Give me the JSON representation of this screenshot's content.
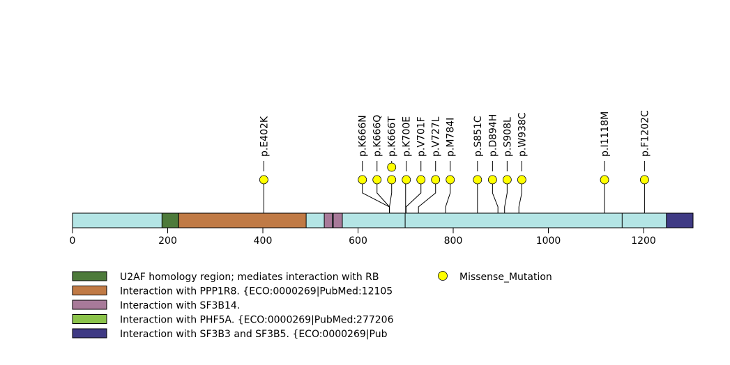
{
  "chart_data": {
    "type": "lollipop",
    "protein_length": 1304,
    "xlim": [
      0,
      1304
    ],
    "ticks": [
      0,
      200,
      400,
      600,
      800,
      1000,
      1200
    ],
    "tick_labels": [
      "0",
      "200",
      "400",
      "600",
      "800",
      "1000",
      "1200"
    ],
    "backbone_color": "#b4e5e5",
    "domains": [
      {
        "start": 188,
        "end": 223,
        "color": "#4d7a3a",
        "name": "U2AF homology region; mediates interaction with RB"
      },
      {
        "start": 223,
        "end": 491,
        "color": "#c07a45",
        "name": "Interaction with PPP1R8. {ECO:0000269|PubMed:12105"
      },
      {
        "start": 529,
        "end": 546,
        "color": "#a87a99",
        "name": "Interaction with SF3B14."
      },
      {
        "start": 548,
        "end": 567,
        "color": "#a87a99",
        "name": "Interaction with SF3B14."
      },
      {
        "start": 1248,
        "end": 1304,
        "color": "#3f3a84",
        "name": "Interaction with SF3B3 and SF3B5. {ECO:0000269|Pub"
      }
    ],
    "domain_dividers": [
      699,
      1155
    ],
    "mutations": [
      {
        "label": "p.E402K",
        "pos": 402,
        "count": 1
      },
      {
        "label": "p.K666N",
        "pos": 666,
        "count": 1
      },
      {
        "label": "p.K666Q",
        "pos": 666,
        "count": 1
      },
      {
        "label": "p.K666T",
        "pos": 666,
        "count": 2
      },
      {
        "label": "p.K700E",
        "pos": 700,
        "count": 1
      },
      {
        "label": "p.V701F",
        "pos": 701,
        "count": 1
      },
      {
        "label": "p.V727L",
        "pos": 727,
        "count": 1
      },
      {
        "label": "p.M784I",
        "pos": 784,
        "count": 1
      },
      {
        "label": "p.S851C",
        "pos": 851,
        "count": 1
      },
      {
        "label": "p.D894H",
        "pos": 894,
        "count": 1
      },
      {
        "label": "p.S908L",
        "pos": 908,
        "count": 1
      },
      {
        "label": "p.W938C",
        "pos": 938,
        "count": 1
      },
      {
        "label": "p.I1118M",
        "pos": 1118,
        "count": 1
      },
      {
        "label": "p.F1202C",
        "pos": 1202,
        "count": 1
      }
    ],
    "mutation_color": "#ffff00",
    "legend": [
      {
        "label": "U2AF homology region; mediates interaction with RB",
        "color": "#4d7a3a"
      },
      {
        "label": "Interaction with PPP1R8. {ECO:0000269|PubMed:12105",
        "color": "#c07a45"
      },
      {
        "label": "Interaction with SF3B14.",
        "color": "#a87a99"
      },
      {
        "label": "Interaction with PHF5A. {ECO:0000269|PubMed:277206",
        "color": "#8bc34a"
      },
      {
        "label": "Interaction with SF3B3 and SF3B5. {ECO:0000269|Pub",
        "color": "#3f3a84"
      }
    ],
    "mutation_legend": {
      "label": "Missense_Mutation",
      "color": "#ffff00"
    }
  }
}
